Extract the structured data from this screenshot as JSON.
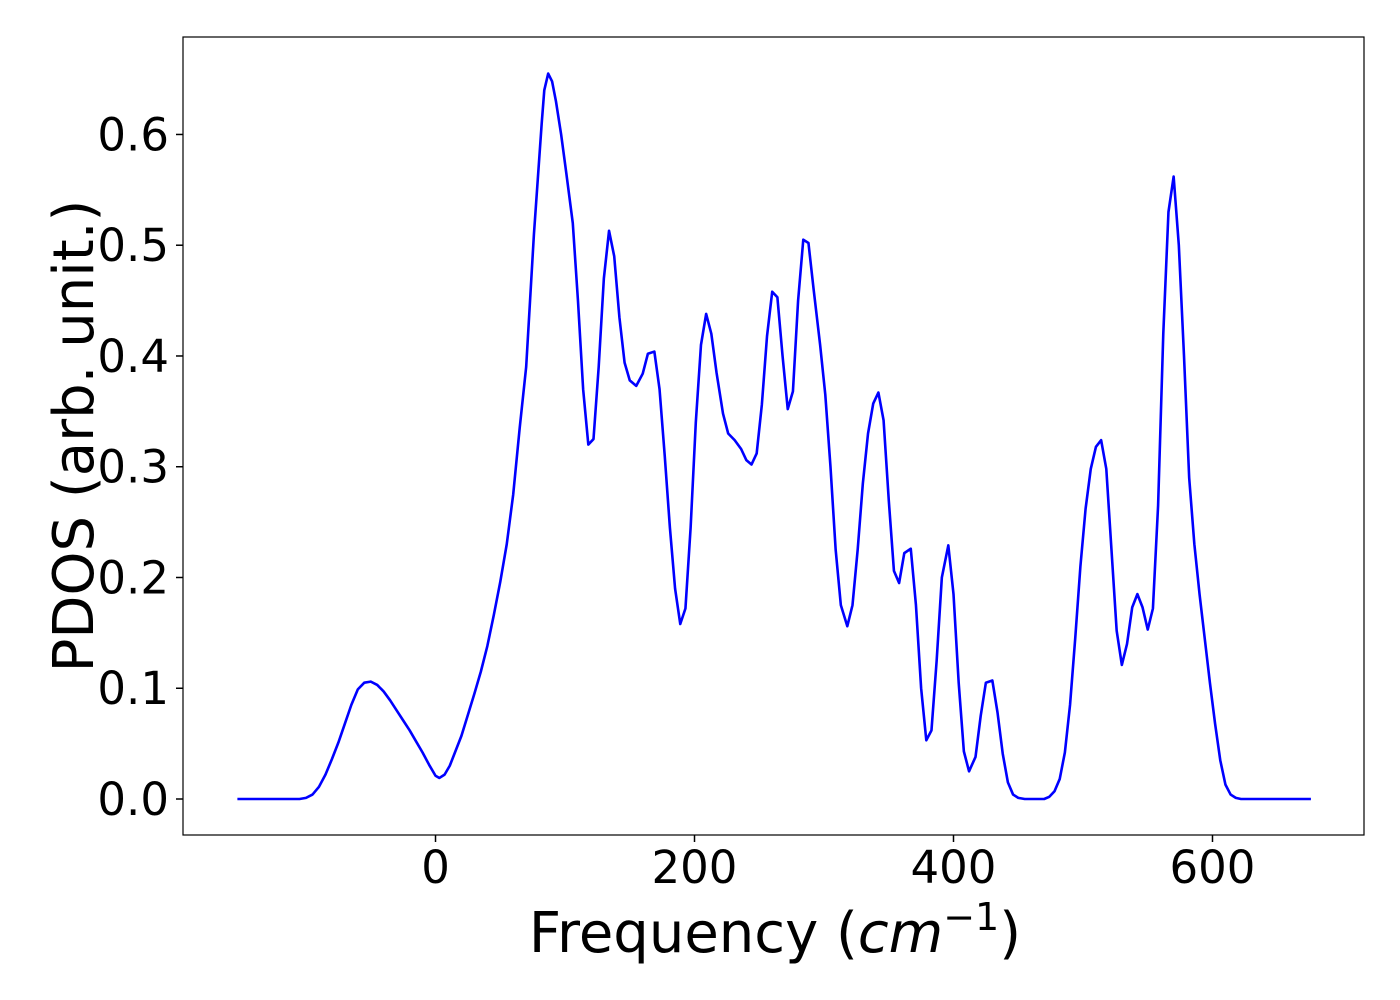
{
  "chart_data": {
    "type": "line",
    "xlabel": [
      "Frequency (",
      "cm",
      "−1",
      ")"
    ],
    "ylabel": "PDOS (arb. unit.)",
    "xlim": [
      -195,
      717
    ],
    "ylim": [
      -0.0325,
      0.688
    ],
    "xticks": [
      0,
      200,
      400,
      600
    ],
    "yticks": [
      {
        "value": 0,
        "label": "0.0"
      },
      0.1,
      0.2,
      0.3,
      0.4,
      0.5,
      0.6
    ],
    "grid": false,
    "series": [
      {
        "color": "#0000ff",
        "x": [
          -153,
          -105,
          -100,
          -95,
          -90,
          -85,
          -80,
          -75,
          -70,
          -65,
          -60,
          -55,
          -50,
          -45,
          -40,
          -35,
          -30,
          -25,
          -20,
          -15,
          -10,
          -5,
          0,
          3,
          7,
          11,
          15,
          20,
          25,
          30,
          35,
          40,
          45,
          50,
          55,
          60,
          65,
          70,
          73,
          76,
          79,
          82,
          84,
          87,
          90,
          93,
          97,
          101,
          106,
          110,
          114,
          118,
          122,
          126,
          130,
          134,
          138,
          142,
          146,
          150,
          155,
          160,
          164,
          169,
          173,
          177,
          181,
          185,
          189,
          193,
          197,
          201,
          205,
          209,
          213,
          217,
          222,
          226,
          231,
          236,
          240,
          244,
          248,
          252,
          256,
          260,
          264,
          268,
          272,
          276,
          280,
          284,
          288,
          292,
          297,
          301,
          305,
          309,
          313,
          318,
          322,
          326,
          330,
          334,
          338,
          342,
          346,
          350,
          354,
          358,
          362,
          367,
          371,
          375,
          379,
          383,
          387,
          391,
          396,
          400,
          404,
          408,
          412,
          417,
          421,
          425,
          430,
          434,
          438,
          442,
          446,
          450,
          455,
          470,
          474,
          478,
          482,
          486,
          490,
          494,
          498,
          502,
          506,
          510,
          514,
          518,
          522,
          526,
          530,
          534,
          538,
          542,
          546,
          550,
          554,
          558,
          562,
          566,
          570,
          574,
          578,
          582,
          586,
          590,
          594,
          598,
          602,
          606,
          610,
          614,
          618,
          622,
          676
        ],
        "values": [
          0,
          0,
          0.001,
          0.004,
          0.011,
          0.022,
          0.036,
          0.051,
          0.068,
          0.085,
          0.099,
          0.105,
          0.106,
          0.103,
          0.097,
          0.089,
          0.08,
          0.071,
          0.062,
          0.052,
          0.042,
          0.031,
          0.021,
          0.019,
          0.022,
          0.03,
          0.042,
          0.057,
          0.076,
          0.095,
          0.115,
          0.138,
          0.166,
          0.196,
          0.23,
          0.275,
          0.335,
          0.39,
          0.45,
          0.51,
          0.56,
          0.61,
          0.64,
          0.655,
          0.648,
          0.63,
          0.6,
          0.565,
          0.52,
          0.45,
          0.37,
          0.32,
          0.325,
          0.39,
          0.47,
          0.513,
          0.49,
          0.435,
          0.394,
          0.378,
          0.373,
          0.384,
          0.402,
          0.404,
          0.37,
          0.31,
          0.245,
          0.19,
          0.158,
          0.172,
          0.245,
          0.34,
          0.41,
          0.438,
          0.42,
          0.385,
          0.348,
          0.33,
          0.324,
          0.316,
          0.306,
          0.302,
          0.312,
          0.356,
          0.418,
          0.458,
          0.453,
          0.4,
          0.352,
          0.368,
          0.45,
          0.505,
          0.502,
          0.46,
          0.41,
          0.365,
          0.3,
          0.225,
          0.175,
          0.156,
          0.175,
          0.225,
          0.285,
          0.33,
          0.357,
          0.367,
          0.342,
          0.27,
          0.206,
          0.195,
          0.222,
          0.226,
          0.175,
          0.1,
          0.053,
          0.062,
          0.125,
          0.2,
          0.229,
          0.185,
          0.105,
          0.043,
          0.025,
          0.038,
          0.075,
          0.105,
          0.107,
          0.078,
          0.041,
          0.015,
          0.004,
          0.001,
          0,
          0,
          0.002,
          0.007,
          0.018,
          0.042,
          0.085,
          0.145,
          0.21,
          0.262,
          0.298,
          0.318,
          0.324,
          0.298,
          0.225,
          0.152,
          0.121,
          0.14,
          0.173,
          0.185,
          0.173,
          0.153,
          0.172,
          0.265,
          0.42,
          0.53,
          0.562,
          0.5,
          0.4,
          0.29,
          0.23,
          0.185,
          0.145,
          0.105,
          0.068,
          0.035,
          0.013,
          0.004,
          0.001,
          0,
          0
        ]
      }
    ]
  }
}
